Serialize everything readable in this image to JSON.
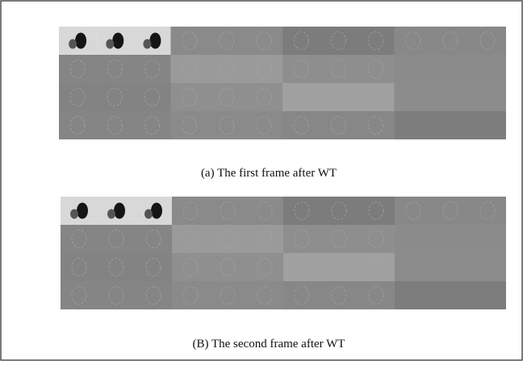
{
  "figures": [
    {
      "caption": "(a) The first frame after WT"
    },
    {
      "caption": "(B) The second frame after WT"
    }
  ]
}
